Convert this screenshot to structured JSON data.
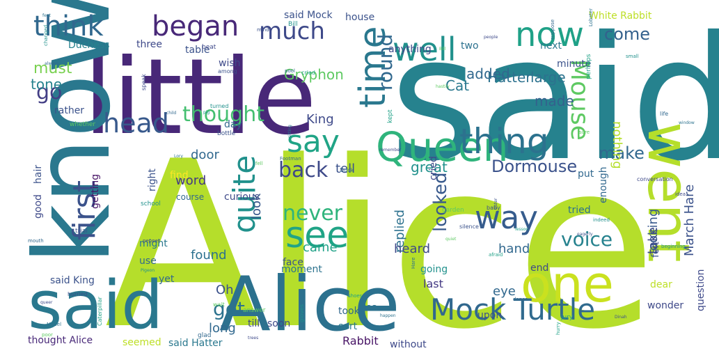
{
  "image": {
    "alt": "Word cloud of Alice in Wonderland vocabulary",
    "words": [
      {
        "text": "Alice",
        "color": "#b5de2b"
      },
      {
        "text": "said",
        "color": "#26828e"
      },
      {
        "text": "little",
        "color": "#482878"
      },
      {
        "text": "said",
        "color": "#2a788e"
      },
      {
        "text": "Alice",
        "color": "#2c718e"
      },
      {
        "text": "know",
        "color": "#2a788e"
      },
      {
        "text": "one",
        "color": "#cae11f"
      },
      {
        "text": "went",
        "color": "#b5de2b"
      },
      {
        "text": "Queen",
        "color": "#2fb47c"
      },
      {
        "text": "thing",
        "color": "#2c728e"
      },
      {
        "text": "Mock",
        "color": "#31688e"
      },
      {
        "text": "Turtle",
        "color": "#306a8e"
      },
      {
        "text": "time",
        "color": "#2a788e"
      },
      {
        "text": "see",
        "color": "#20a486"
      },
      {
        "text": "now",
        "color": "#1fa187"
      },
      {
        "text": "well",
        "color": "#21918c"
      },
      {
        "text": "way",
        "color": "#365c8d"
      },
      {
        "text": "first",
        "color": "#3b528b"
      },
      {
        "text": "quite",
        "color": "#21918c"
      },
      {
        "text": "head",
        "color": "#38598c"
      },
      {
        "text": "think",
        "color": "#31688e"
      },
      {
        "text": "began",
        "color": "#482878"
      },
      {
        "text": "much",
        "color": "#3e4989"
      },
      {
        "text": "say",
        "color": "#20a486"
      },
      {
        "text": "back",
        "color": "#3e4989"
      },
      {
        "text": "thought",
        "color": "#44bf70"
      },
      {
        "text": "Mouse",
        "color": "#5ec962"
      },
      {
        "text": "voice",
        "color": "#26828e"
      },
      {
        "text": "round",
        "color": "#31688e"
      },
      {
        "text": "come",
        "color": "#34618d"
      },
      {
        "text": "looked",
        "color": "#38598c"
      },
      {
        "text": "Dormouse",
        "color": "#3b528b"
      },
      {
        "text": "go",
        "color": "#433e85"
      },
      {
        "text": "never",
        "color": "#2fb47c"
      },
      {
        "text": "got",
        "color": "#2c728e"
      },
      {
        "text": "Hatter",
        "color": "#2c718e"
      },
      {
        "text": "Gryphon",
        "color": "#5ec962"
      },
      {
        "text": "must",
        "color": "#7ad151"
      },
      {
        "text": "tone",
        "color": "#26828e"
      },
      {
        "text": "make",
        "color": "#31688e"
      },
      {
        "text": "March Hare",
        "color": "#3b528b"
      },
      {
        "text": "nothing",
        "color": "#b5de2b"
      },
      {
        "text": "large",
        "color": "#2c728e"
      },
      {
        "text": "made",
        "color": "#34618d"
      },
      {
        "text": "King",
        "color": "#3e4989"
      },
      {
        "text": "Cat",
        "color": "#2a788e"
      },
      {
        "text": "added",
        "color": "#31688e"
      },
      {
        "text": "tell",
        "color": "#3b528b"
      },
      {
        "text": "great",
        "color": "#21918c"
      },
      {
        "text": "replied",
        "color": "#2c718e"
      },
      {
        "text": "heard",
        "color": "#3e4989"
      },
      {
        "text": "hand",
        "color": "#31688e"
      },
      {
        "text": "came",
        "color": "#1fa187"
      },
      {
        "text": "look",
        "color": "#38598c"
      },
      {
        "text": "door",
        "color": "#31688e"
      },
      {
        "text": "word",
        "color": "#443983"
      },
      {
        "text": "found",
        "color": "#2c718e"
      },
      {
        "text": "looking",
        "color": "#38598c"
      },
      {
        "text": "take",
        "color": "#3e4989"
      },
      {
        "text": "eye",
        "color": "#31688e"
      },
      {
        "text": "Oh",
        "color": "#3b528b"
      },
      {
        "text": "long",
        "color": "#31688e"
      },
      {
        "text": "Rabbit",
        "color": "#471365"
      },
      {
        "text": "said King",
        "color": "#3b528b"
      },
      {
        "text": "thought Alice",
        "color": "#482878"
      },
      {
        "text": "seemed",
        "color": "#bddf26"
      },
      {
        "text": "said Hatter",
        "color": "#2a788e"
      },
      {
        "text": "without",
        "color": "#3e4989"
      },
      {
        "text": "sort",
        "color": "#2a788e"
      },
      {
        "text": "last",
        "color": "#443983"
      },
      {
        "text": "tea",
        "color": "#2c728e"
      },
      {
        "text": "took",
        "color": "#31688e"
      },
      {
        "text": "upon",
        "color": "#3b528b"
      },
      {
        "text": "end",
        "color": "#3e4989"
      },
      {
        "text": "wonder",
        "color": "#3e4989"
      },
      {
        "text": "question",
        "color": "#3e4989"
      },
      {
        "text": "tried",
        "color": "#2c728e"
      },
      {
        "text": "dear",
        "color": "#bddf26"
      },
      {
        "text": "felt",
        "color": "#3b528b"
      },
      {
        "text": "put",
        "color": "#31688e"
      },
      {
        "text": "getting",
        "color": "#471365"
      },
      {
        "text": "curious",
        "color": "#3e4989"
      },
      {
        "text": "find",
        "color": "#fde725"
      },
      {
        "text": "right",
        "color": "#3b528b"
      },
      {
        "text": "day",
        "color": "#31688e"
      },
      {
        "text": "three",
        "color": "#3e4989"
      },
      {
        "text": "two",
        "color": "#2c718e"
      },
      {
        "text": "Duchess",
        "color": "#26828e"
      },
      {
        "text": "minute",
        "color": "#3b528b"
      },
      {
        "text": "next",
        "color": "#2a788e"
      },
      {
        "text": "White Rabbit",
        "color": "#bddf26"
      },
      {
        "text": "anything",
        "color": "#3e4989"
      },
      {
        "text": "table",
        "color": "#3b528b"
      },
      {
        "text": "said Mock",
        "color": "#3b528b"
      },
      {
        "text": "house",
        "color": "#3b528b"
      },
      {
        "text": "wish",
        "color": "#3e4989"
      },
      {
        "text": "rather",
        "color": "#3b528b"
      },
      {
        "text": "might",
        "color": "#2a788e"
      },
      {
        "text": "use",
        "color": "#31688e"
      },
      {
        "text": "yet",
        "color": "#31688e"
      },
      {
        "text": "going",
        "color": "#21918c"
      },
      {
        "text": "moment",
        "color": "#2c728e"
      },
      {
        "text": "till",
        "color": "#3e4989"
      },
      {
        "text": "soon",
        "color": "#3e4989"
      },
      {
        "text": "face",
        "color": "#3b528b"
      },
      {
        "text": "cried",
        "color": "#3e4989"
      },
      {
        "text": "enough",
        "color": "#31688e"
      },
      {
        "text": "hair",
        "color": "#3b528b"
      },
      {
        "text": "good",
        "color": "#3e4989"
      },
      {
        "text": "course",
        "color": "#31688e"
      }
    ],
    "small_words": [
      "Dinah",
      "small",
      "hastily",
      "pool",
      "asked",
      "queer",
      "cried",
      "sister",
      "Bill",
      "garden",
      "Footman",
      "sitting",
      "people",
      "jury",
      "baby",
      "pig",
      "quiet",
      "life",
      "Mabel",
      "remember",
      "perhaps",
      "silence",
      "Pigeon",
      "poor",
      "suppose",
      "Lory",
      "speak",
      "Caterpillar",
      "mind",
      "beginning",
      "wait",
      "child",
      "feet",
      "idea",
      "shoes",
      "hurried",
      "indeed",
      "sure",
      "dance",
      "Hare",
      "conversation",
      "afraid",
      "eagerly",
      "gloves",
      "Bill",
      "glad",
      "window",
      "pepper",
      "kept",
      "bottle",
      "changed",
      "fell",
      "mouth",
      "Lobster",
      "trees",
      "hurry",
      "among",
      "school",
      "answer",
      "always",
      "happen",
      "beat",
      "lesson",
      "trial",
      "turned",
      "whether",
      "Duck"
    ]
  }
}
